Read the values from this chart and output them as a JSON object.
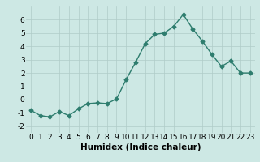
{
  "x": [
    0,
    1,
    2,
    3,
    4,
    5,
    6,
    7,
    8,
    9,
    10,
    11,
    12,
    13,
    14,
    15,
    16,
    17,
    18,
    19,
    20,
    21,
    22,
    23
  ],
  "y": [
    -0.8,
    -1.2,
    -1.3,
    -0.9,
    -1.2,
    -0.7,
    -0.3,
    -0.25,
    -0.3,
    0.05,
    1.5,
    2.8,
    4.2,
    4.9,
    5.0,
    5.5,
    6.4,
    5.3,
    4.4,
    3.4,
    2.5,
    2.9,
    2.0,
    2.0
  ],
  "line_color": "#2e7d6e",
  "marker": "D",
  "marker_size": 2.5,
  "linewidth": 1.0,
  "xlabel": "Humidex (Indice chaleur)",
  "xlim": [
    -0.5,
    23.5
  ],
  "ylim": [
    -2.5,
    7.0
  ],
  "yticks": [
    -2,
    -1,
    0,
    1,
    2,
    3,
    4,
    5,
    6
  ],
  "xticks": [
    0,
    1,
    2,
    3,
    4,
    5,
    6,
    7,
    8,
    9,
    10,
    11,
    12,
    13,
    14,
    15,
    16,
    17,
    18,
    19,
    20,
    21,
    22,
    23
  ],
  "bg_color": "#cde8e4",
  "grid_color": "#b0ccc8",
  "tick_fontsize": 6.5,
  "xlabel_fontsize": 7.5
}
